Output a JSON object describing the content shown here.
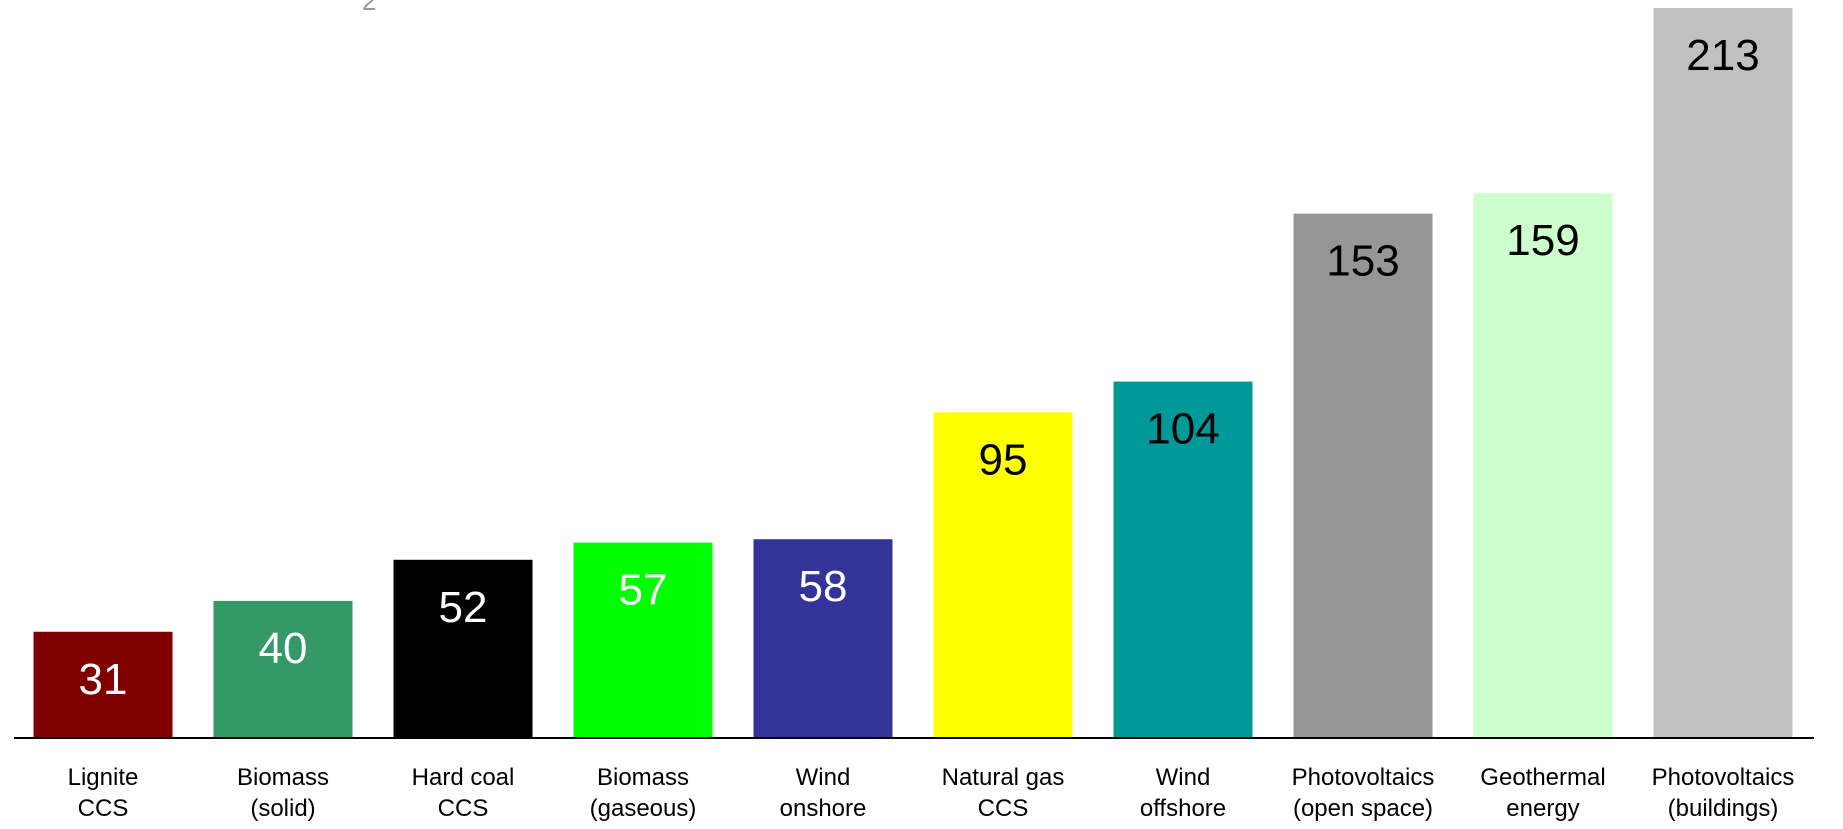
{
  "header_fragment": "2",
  "chart_data": {
    "type": "bar",
    "title": "",
    "xlabel": "",
    "ylabel": "",
    "ylim": [
      0,
      213
    ],
    "grid": false,
    "categories": [
      [
        "Lignite",
        "CCS"
      ],
      [
        "Biomass",
        "(solid)"
      ],
      [
        "Hard coal",
        "CCS"
      ],
      [
        "Biomass",
        "(gaseous)"
      ],
      [
        "Wind",
        "onshore"
      ],
      [
        "Natural gas",
        "CCS"
      ],
      [
        "Wind",
        "offshore"
      ],
      [
        "Photovoltaics",
        "(open space)"
      ],
      [
        "Geothermal",
        "energy"
      ],
      [
        "Photovoltaics",
        "(buildings)"
      ]
    ],
    "values": [
      31,
      40,
      52,
      57,
      58,
      95,
      104,
      153,
      159,
      213
    ],
    "bar_colors": [
      "#800000",
      "#339966",
      "#000000",
      "#00ff00",
      "#333399",
      "#ffff00",
      "#009999",
      "#969696",
      "#ccffcc",
      "#c0c0c0"
    ],
    "label_colors": [
      "#ffffff",
      "#ffffff",
      "#ffffff",
      "#ffffff",
      "#ffffff",
      "#000000",
      "#000000",
      "#000000",
      "#000000",
      "#000000"
    ]
  }
}
